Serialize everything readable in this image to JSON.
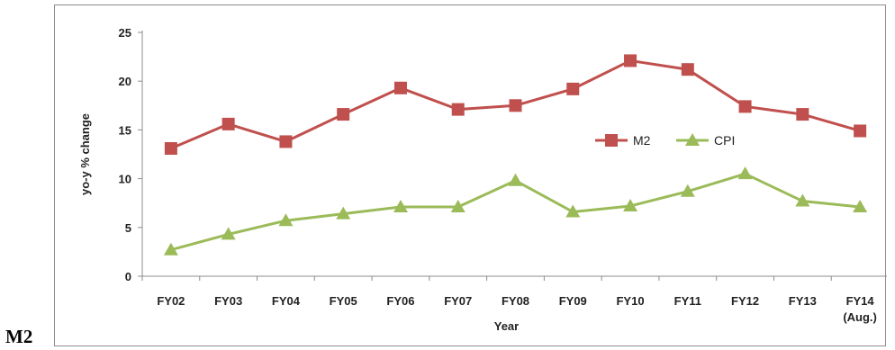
{
  "corner_label": "M2",
  "chart_data": {
    "type": "line",
    "categories": [
      "FY02",
      "FY03",
      "FY04",
      "FY05",
      "FY06",
      "FY07",
      "FY08",
      "FY09",
      "FY10",
      "FY11",
      "FY12",
      "FY13",
      "FY14"
    ],
    "category_sublabels": [
      "",
      "",
      "",
      "",
      "",
      "",
      "",
      "",
      "",
      "",
      "",
      "",
      "(Aug.)"
    ],
    "series": [
      {
        "name": "M2",
        "color": "#c0504d",
        "marker": "square",
        "values": [
          13.1,
          15.6,
          13.8,
          16.6,
          19.3,
          17.1,
          17.5,
          19.2,
          22.1,
          21.2,
          17.4,
          16.6,
          14.9
        ]
      },
      {
        "name": "CPI",
        "color": "#9bbb59",
        "marker": "triangle",
        "values": [
          2.7,
          4.3,
          5.7,
          6.4,
          7.1,
          7.1,
          9.8,
          6.6,
          7.2,
          8.7,
          10.5,
          7.7,
          7.1
        ]
      }
    ],
    "title": "",
    "xlabel": "Year",
    "ylabel": "yo-y % change",
    "ylim": [
      0,
      25
    ],
    "yticks": [
      "0",
      "5",
      "10",
      "15",
      "20",
      "25"
    ],
    "grid": false,
    "legend": "right-middle"
  }
}
